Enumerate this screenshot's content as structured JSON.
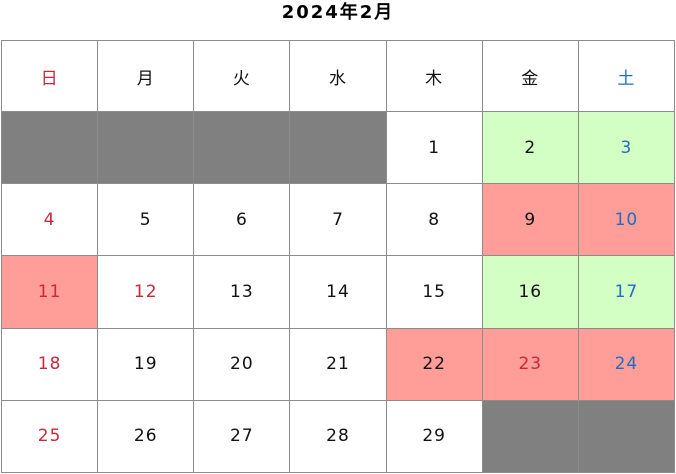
{
  "title": "2024年2月",
  "colors": {
    "empty": "#808080",
    "green": "#d4ffc4",
    "pink": "#ff9d98",
    "sunday_text": "#c8283c",
    "saturday_text": "#1a6fc4"
  },
  "weekdays": [
    {
      "label": "日",
      "color": "red"
    },
    {
      "label": "月",
      "color": "black"
    },
    {
      "label": "火",
      "color": "black"
    },
    {
      "label": "水",
      "color": "black"
    },
    {
      "label": "木",
      "color": "black"
    },
    {
      "label": "金",
      "color": "black"
    },
    {
      "label": "土",
      "color": "blue"
    }
  ],
  "weeks": [
    [
      {
        "day": "",
        "bg": "gray"
      },
      {
        "day": "",
        "bg": "gray"
      },
      {
        "day": "",
        "bg": "gray"
      },
      {
        "day": "",
        "bg": "gray"
      },
      {
        "day": "1",
        "bg": "white",
        "color": "black"
      },
      {
        "day": "2",
        "bg": "green",
        "color": "black"
      },
      {
        "day": "3",
        "bg": "green",
        "color": "blue"
      }
    ],
    [
      {
        "day": "4",
        "bg": "white",
        "color": "red"
      },
      {
        "day": "5",
        "bg": "white",
        "color": "black"
      },
      {
        "day": "6",
        "bg": "white",
        "color": "black"
      },
      {
        "day": "7",
        "bg": "white",
        "color": "black"
      },
      {
        "day": "8",
        "bg": "white",
        "color": "black"
      },
      {
        "day": "9",
        "bg": "pink",
        "color": "black"
      },
      {
        "day": "10",
        "bg": "pink",
        "color": "blue"
      }
    ],
    [
      {
        "day": "11",
        "bg": "pink",
        "color": "red"
      },
      {
        "day": "12",
        "bg": "white",
        "color": "red"
      },
      {
        "day": "13",
        "bg": "white",
        "color": "black"
      },
      {
        "day": "14",
        "bg": "white",
        "color": "black"
      },
      {
        "day": "15",
        "bg": "white",
        "color": "black"
      },
      {
        "day": "16",
        "bg": "green",
        "color": "black"
      },
      {
        "day": "17",
        "bg": "green",
        "color": "blue"
      }
    ],
    [
      {
        "day": "18",
        "bg": "white",
        "color": "red"
      },
      {
        "day": "19",
        "bg": "white",
        "color": "black"
      },
      {
        "day": "20",
        "bg": "white",
        "color": "black"
      },
      {
        "day": "21",
        "bg": "white",
        "color": "black"
      },
      {
        "day": "22",
        "bg": "pink",
        "color": "black"
      },
      {
        "day": "23",
        "bg": "pink",
        "color": "red"
      },
      {
        "day": "24",
        "bg": "pink",
        "color": "blue"
      }
    ],
    [
      {
        "day": "25",
        "bg": "white",
        "color": "red"
      },
      {
        "day": "26",
        "bg": "white",
        "color": "black"
      },
      {
        "day": "27",
        "bg": "white",
        "color": "black"
      },
      {
        "day": "28",
        "bg": "white",
        "color": "black"
      },
      {
        "day": "29",
        "bg": "white",
        "color": "black"
      },
      {
        "day": "",
        "bg": "gray"
      },
      {
        "day": "",
        "bg": "gray"
      }
    ]
  ]
}
